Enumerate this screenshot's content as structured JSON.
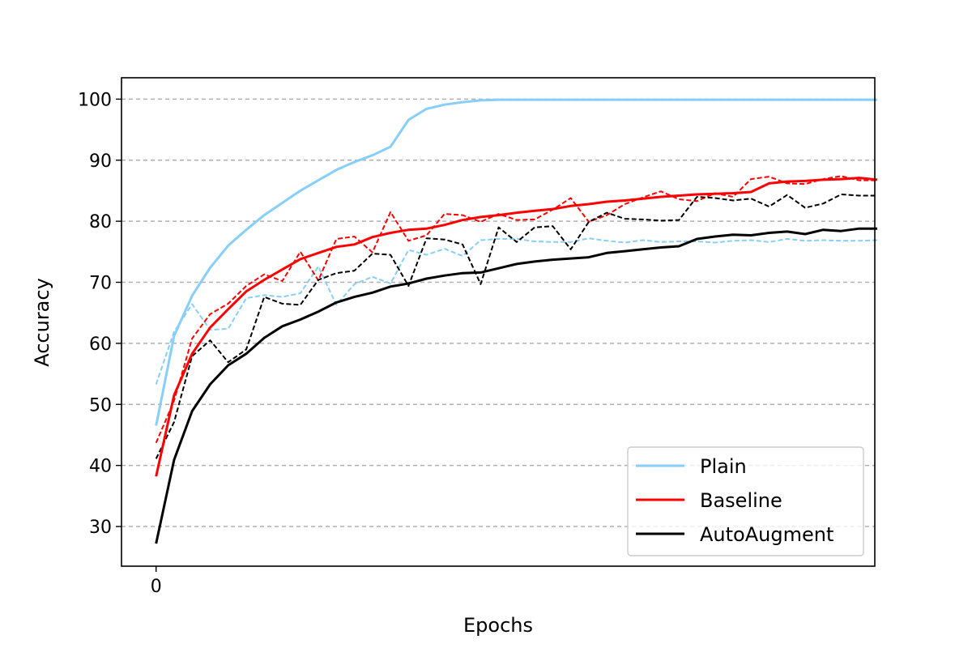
{
  "chart_data": {
    "type": "line",
    "title": "",
    "xlabel": "Epochs",
    "ylabel": "Accuracy",
    "xlim": [
      -1.4,
      29.1
    ],
    "ylim": [
      23.5,
      103.5
    ],
    "x_ticks": [
      0
    ],
    "x_tick_labels": [
      "0"
    ],
    "y_ticks": [
      30,
      40,
      50,
      60,
      70,
      80,
      90,
      100
    ],
    "y_tick_labels": [
      "30",
      "40",
      "50",
      "60",
      "70",
      "80",
      "90",
      "100"
    ],
    "grid": "horizontal dashed",
    "legend_position": "lower right",
    "x": [
      0,
      0.73,
      1.46,
      2.19,
      2.92,
      3.65,
      4.38,
      5.11,
      5.84,
      6.57,
      7.3,
      8.03,
      8.76,
      9.49,
      10.22,
      10.95,
      11.68,
      12.41,
      13.14,
      13.87,
      14.6,
      15.33,
      16.06,
      16.79,
      17.52,
      18.25,
      18.98,
      19.71,
      20.44,
      21.17,
      21.9,
      22.63,
      23.36,
      24.09,
      24.82,
      25.55,
      26.28,
      27.01,
      27.74,
      28.47,
      29.2
    ],
    "series": [
      {
        "name": "Plain",
        "style": "solid",
        "color": "#87CEFA",
        "values": [
          46.5,
          61.2,
          67.8,
          72.4,
          76.0,
          78.6,
          81.0,
          83.0,
          85.0,
          86.7,
          88.4,
          89.7,
          90.8,
          92.2,
          96.6,
          98.4,
          99.1,
          99.5,
          99.8,
          99.9,
          99.9,
          99.9,
          99.9,
          99.9,
          99.9,
          99.9,
          99.9,
          99.9,
          99.9,
          99.9,
          99.9,
          99.9,
          99.9,
          99.9,
          99.9,
          99.9,
          99.9,
          99.9,
          99.9,
          99.9,
          99.9
        ]
      },
      {
        "name": "Baseline",
        "style": "solid",
        "color": "#FF0000",
        "values": [
          38.2,
          51.5,
          58.3,
          62.6,
          65.6,
          68.5,
          70.4,
          72.1,
          73.8,
          74.8,
          75.8,
          76.2,
          77.4,
          78.1,
          78.6,
          78.8,
          79.4,
          80.2,
          80.7,
          81.0,
          81.4,
          81.7,
          82.0,
          82.5,
          82.8,
          83.2,
          83.4,
          83.7,
          84.0,
          84.2,
          84.4,
          84.5,
          84.6,
          84.8,
          86.2,
          86.5,
          86.6,
          86.8,
          86.9,
          87.1,
          86.8
        ]
      },
      {
        "name": "AutoAugment",
        "style": "solid",
        "color": "#000000",
        "values": [
          27.2,
          40.9,
          48.9,
          53.3,
          56.4,
          58.3,
          60.9,
          62.8,
          63.9,
          65.2,
          66.7,
          67.6,
          68.3,
          69.3,
          69.8,
          70.6,
          71.1,
          71.5,
          71.6,
          72.3,
          73.0,
          73.4,
          73.7,
          73.9,
          74.1,
          74.8,
          75.1,
          75.4,
          75.7,
          75.9,
          77.1,
          77.5,
          77.8,
          77.7,
          78.1,
          78.3,
          77.9,
          78.6,
          78.4,
          78.8,
          78.8
        ]
      },
      {
        "name": "",
        "style": "dashed",
        "color": "#87CEFA",
        "values": [
          53.3,
          61.9,
          66.4,
          62.2,
          62.4,
          67.4,
          67.9,
          67.6,
          68.2,
          72.6,
          66.3,
          69.7,
          70.9,
          69.8,
          75.3,
          74.5,
          75.5,
          74.3,
          76.9,
          77.1,
          77.1,
          76.7,
          76.6,
          76.6,
          77.2,
          76.8,
          76.5,
          76.9,
          76.6,
          76.7,
          76.7,
          76.5,
          76.8,
          76.9,
          76.6,
          77.1,
          76.8,
          76.9,
          76.8,
          76.8,
          76.9
        ]
      },
      {
        "name": "",
        "style": "dashed",
        "color": "#FF0000",
        "values": [
          43.7,
          50.6,
          60.8,
          64.8,
          66.5,
          69.4,
          71.3,
          70.2,
          75.0,
          70.3,
          77.1,
          77.5,
          74.9,
          81.5,
          76.8,
          77.7,
          81.2,
          81.0,
          79.9,
          81.2,
          80.2,
          80.3,
          81.9,
          83.8,
          79.9,
          81.0,
          82.8,
          83.9,
          84.9,
          83.6,
          83.3,
          84.6,
          84.0,
          86.9,
          87.3,
          86.2,
          86.1,
          86.9,
          87.4,
          86.7,
          86.7
        ]
      },
      {
        "name": "",
        "style": "dashed",
        "color": "#000000",
        "values": [
          41.1,
          47.1,
          57.9,
          60.5,
          56.9,
          59.0,
          67.6,
          66.5,
          66.3,
          70.4,
          71.5,
          71.9,
          74.7,
          74.5,
          69.4,
          77.2,
          77.0,
          76.2,
          69.7,
          79.0,
          76.6,
          79.0,
          79.2,
          75.4,
          79.9,
          81.4,
          80.4,
          80.3,
          80.1,
          80.2,
          84.0,
          83.8,
          83.4,
          83.7,
          82.4,
          84.3,
          82.2,
          82.9,
          84.4,
          84.2,
          84.2
        ]
      }
    ],
    "legend": [
      {
        "label": "Plain",
        "color": "#87CEFA"
      },
      {
        "label": "Baseline",
        "color": "#FF0000"
      },
      {
        "label": "AutoAugment",
        "color": "#000000"
      }
    ]
  }
}
